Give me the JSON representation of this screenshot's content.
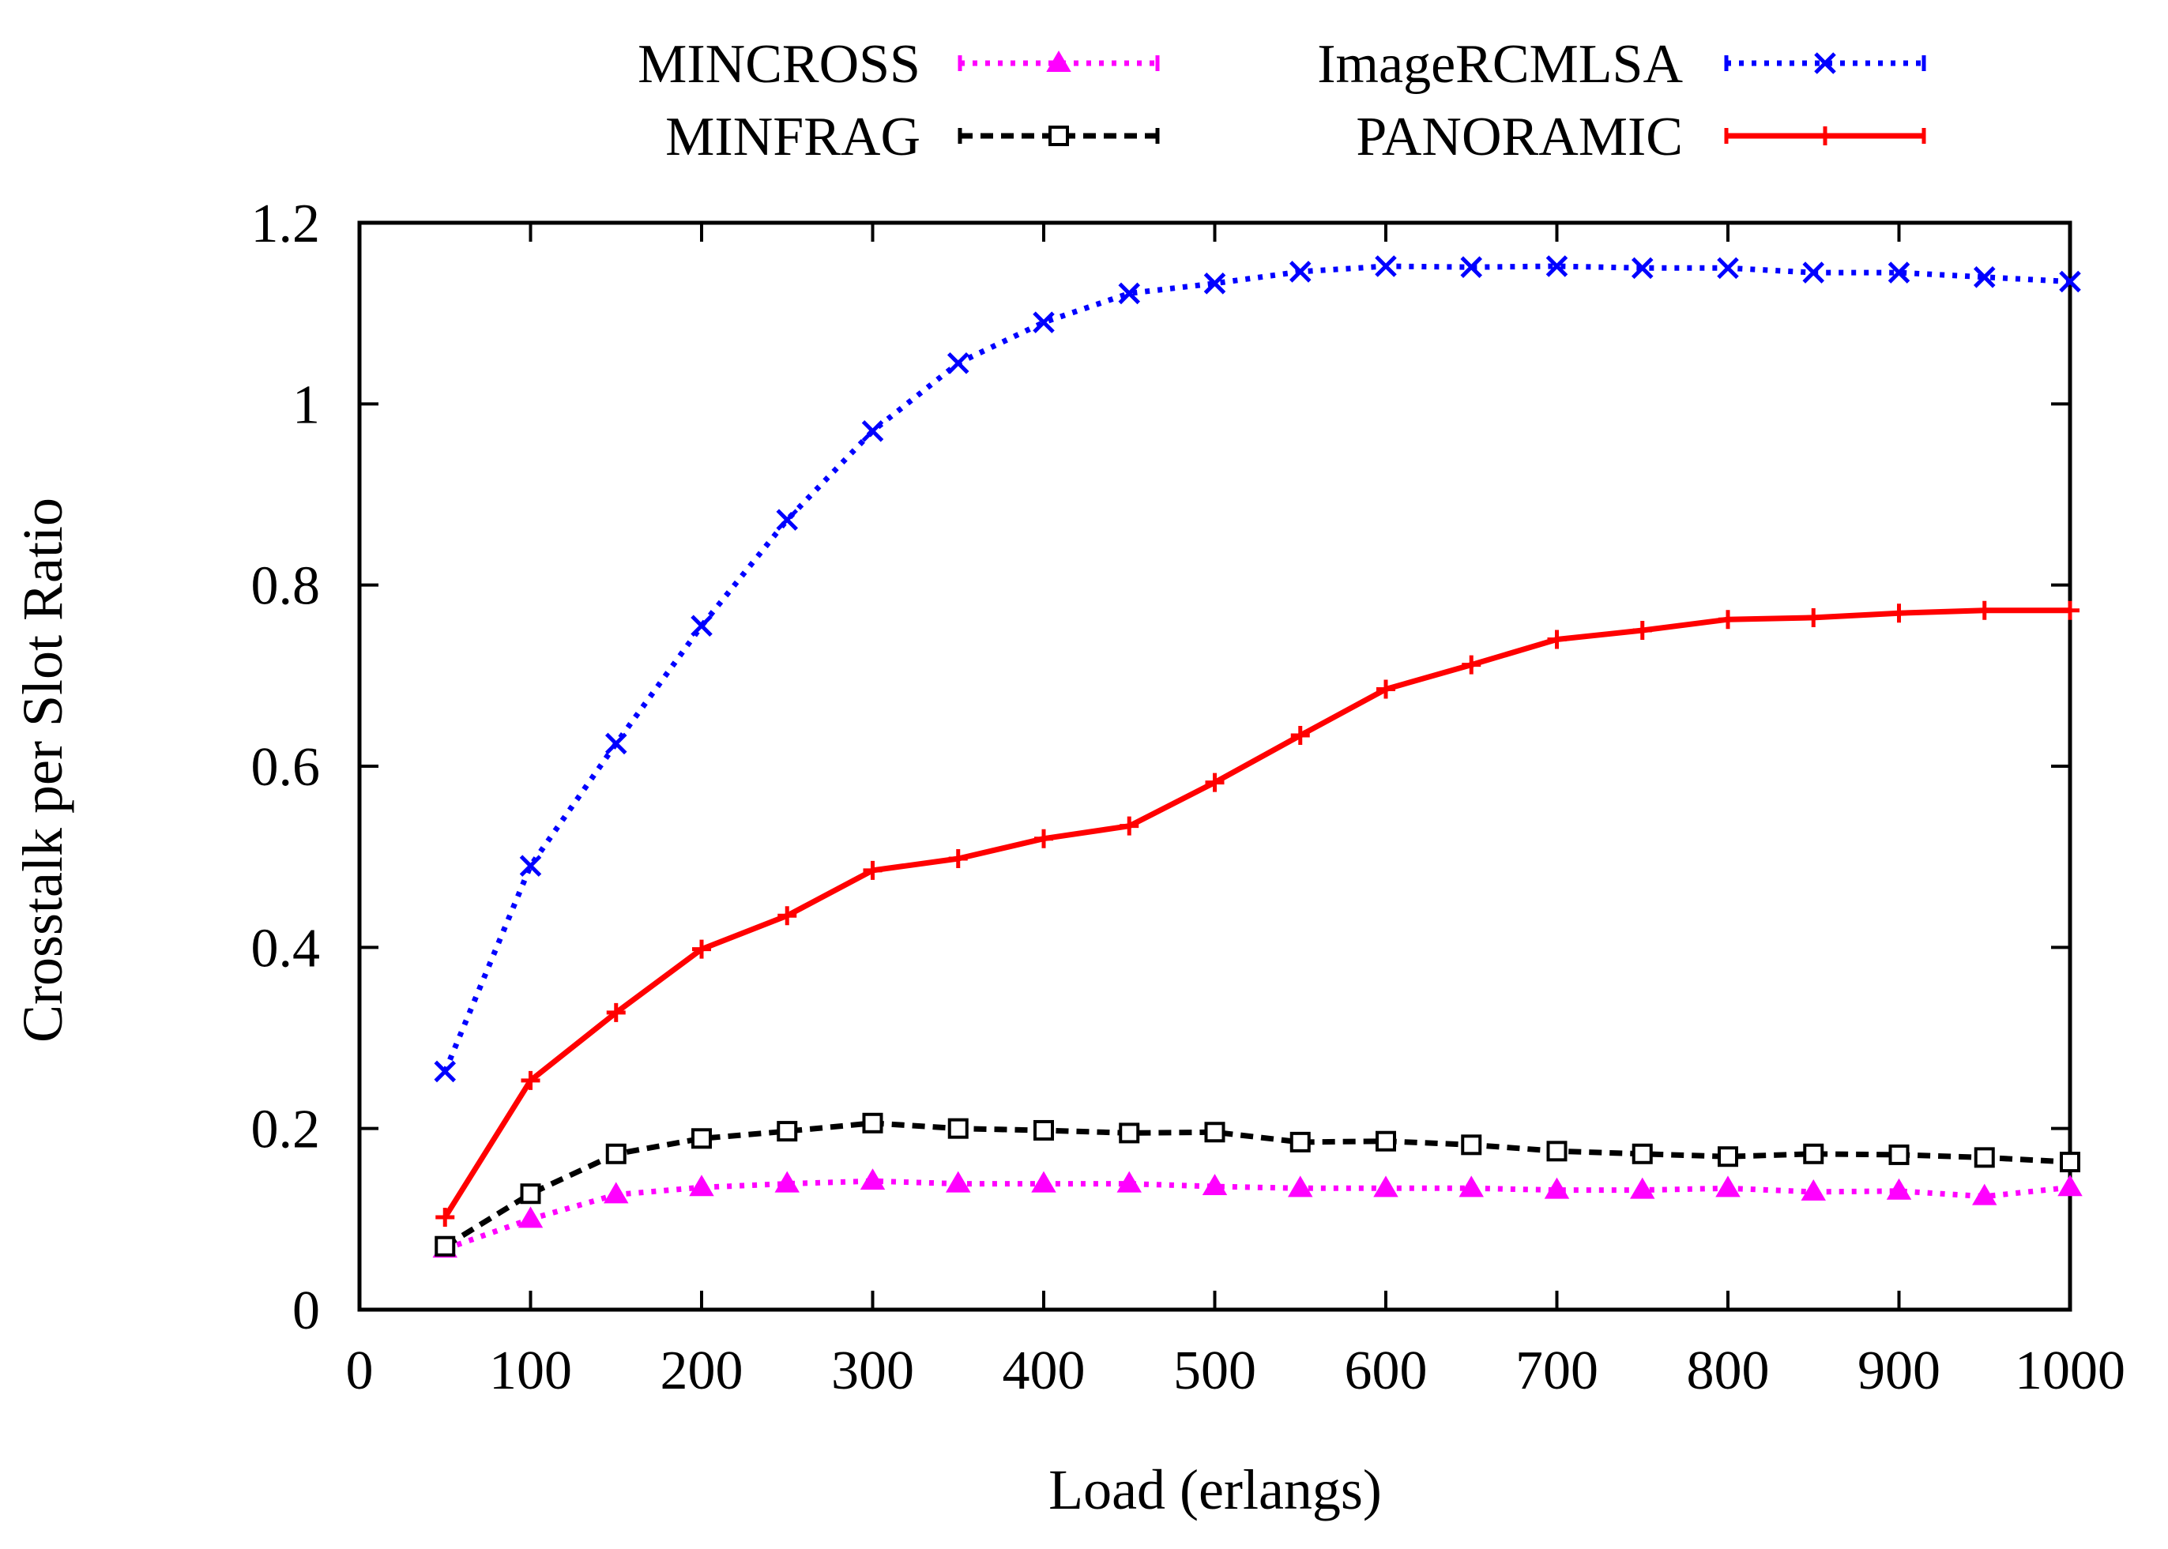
{
  "chart_data": {
    "type": "line",
    "title": "",
    "xlabel": "Load (erlangs)",
    "ylabel": "Crosstalk per Slot Ratio",
    "xlim": [
      0,
      1000
    ],
    "ylim": [
      0,
      1.2
    ],
    "xticks": [
      0,
      100,
      200,
      300,
      400,
      500,
      600,
      700,
      800,
      900,
      1000
    ],
    "yticks": [
      0,
      0.2,
      0.4,
      0.6,
      0.8,
      1,
      1.2
    ],
    "xtick_labels": [
      "0",
      "100",
      "200",
      "300",
      "400",
      "500",
      "600",
      "700",
      "800",
      "900",
      "1000"
    ],
    "ytick_labels": [
      "0",
      "0.2",
      "0.4",
      "0.6",
      "0.8",
      "1",
      "1.2"
    ],
    "grid": false,
    "legend_position": "top",
    "x": [
      50,
      100,
      150,
      200,
      250,
      300,
      350,
      400,
      450,
      500,
      550,
      600,
      650,
      700,
      750,
      800,
      850,
      900,
      950,
      1000
    ],
    "series": [
      {
        "name": "MINCROSS",
        "color": "#ff00ff",
        "line_style": "dotted",
        "marker": "filled-triangle",
        "values": [
          0.067,
          0.1,
          0.127,
          0.135,
          0.139,
          0.142,
          0.139,
          0.139,
          0.139,
          0.136,
          0.134,
          0.134,
          0.134,
          0.132,
          0.132,
          0.134,
          0.13,
          0.131,
          0.125,
          0.135
        ]
      },
      {
        "name": "ImageRCMLSA",
        "color": "#0000ff",
        "line_style": "dotted",
        "marker": "cross",
        "values": [
          0.263,
          0.49,
          0.625,
          0.755,
          0.872,
          0.97,
          1.045,
          1.09,
          1.122,
          1.133,
          1.146,
          1.152,
          1.151,
          1.152,
          1.15,
          1.15,
          1.145,
          1.145,
          1.14,
          1.135
        ]
      },
      {
        "name": "MINFRAG",
        "color": "#000000",
        "line_style": "dashed",
        "marker": "open-square",
        "values": [
          0.07,
          0.128,
          0.172,
          0.189,
          0.197,
          0.206,
          0.2,
          0.198,
          0.195,
          0.196,
          0.185,
          0.186,
          0.182,
          0.175,
          0.172,
          0.169,
          0.172,
          0.171,
          0.168,
          0.163
        ]
      },
      {
        "name": "PANORAMIC",
        "color": "#ff0000",
        "line_style": "solid",
        "marker": "plus",
        "values": [
          0.102,
          0.253,
          0.328,
          0.398,
          0.435,
          0.485,
          0.498,
          0.52,
          0.534,
          0.582,
          0.634,
          0.685,
          0.712,
          0.74,
          0.75,
          0.762,
          0.764,
          0.769,
          0.772,
          0.772
        ]
      }
    ]
  }
}
